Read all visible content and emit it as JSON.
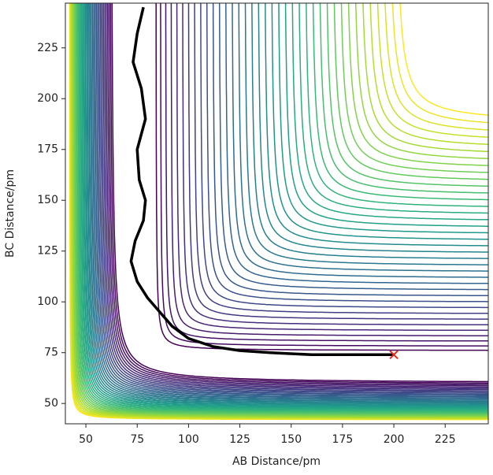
{
  "chart_data": {
    "type": "contour",
    "xlabel": "AB Distance/pm",
    "ylabel": "BC Distance/pm",
    "xlim": [
      40,
      246
    ],
    "ylim": [
      40,
      247
    ],
    "xticks": [
      50,
      75,
      100,
      125,
      150,
      175,
      200,
      225
    ],
    "yticks": [
      50,
      75,
      100,
      125,
      150,
      175,
      200,
      225
    ],
    "trajectory": {
      "color": "#000000",
      "x": [
        200,
        180,
        160,
        140,
        125,
        112,
        100,
        92,
        86,
        80,
        75,
        72,
        74,
        78,
        79,
        76,
        75,
        79,
        77,
        73,
        75,
        78
      ],
      "y": [
        74,
        74,
        74,
        75,
        76,
        78,
        82,
        88,
        95,
        102,
        110,
        120,
        130,
        140,
        150,
        160,
        175,
        190,
        205,
        218,
        232,
        245
      ]
    },
    "marker": {
      "x": 200,
      "y": 74,
      "color": "#e8291c"
    }
  }
}
